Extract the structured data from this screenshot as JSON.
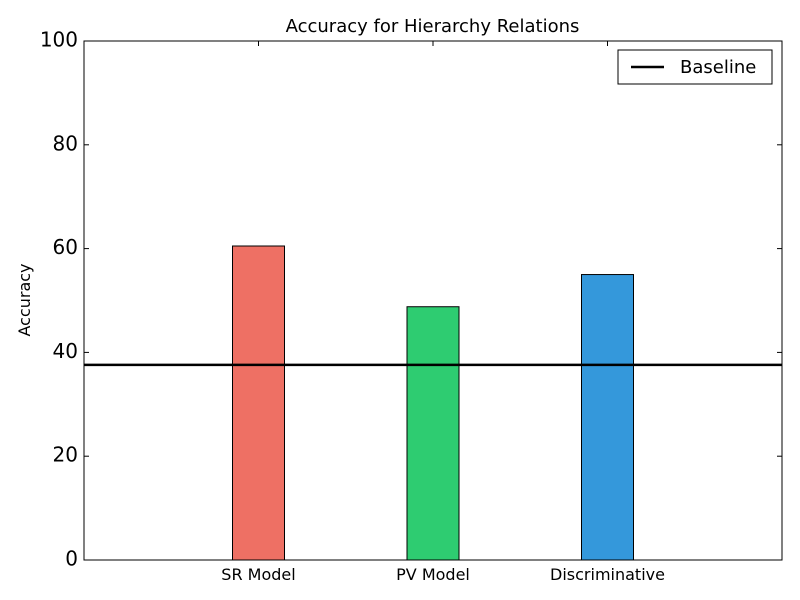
{
  "chart_data": {
    "type": "bar",
    "title": "Accuracy for Hierarchy Relations",
    "xlabel": "",
    "ylabel": "Accuracy",
    "categories": [
      "SR Model",
      "PV Model",
      "Discriminative"
    ],
    "values": [
      60.5,
      48.8,
      55.0
    ],
    "bar_colors": [
      "#EE7064",
      "#2ECC71",
      "#3498DB"
    ],
    "ylim": [
      0,
      100
    ],
    "yticks": [
      "0",
      "20",
      "40",
      "60",
      "80",
      "100"
    ],
    "baseline": {
      "label": "Baseline",
      "value": 37.6,
      "color": "#000000"
    },
    "legend": {
      "placement": "top-right",
      "entries": [
        "Baseline"
      ]
    },
    "grid": false
  }
}
